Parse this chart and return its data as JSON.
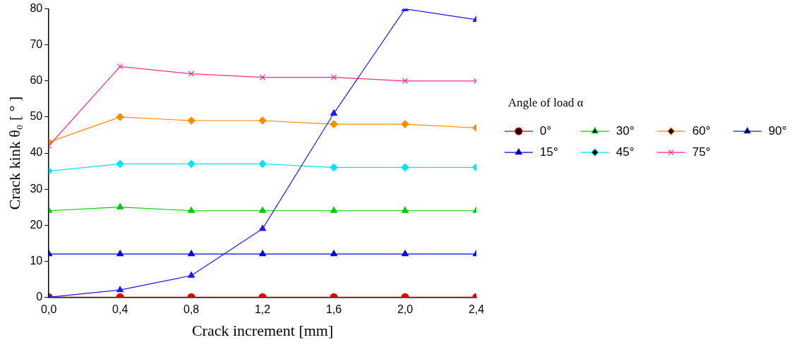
{
  "chart_data": {
    "type": "line",
    "xlabel": "Crack increment [mm]",
    "ylabel": "Crack kink θ₀ [ ° ]",
    "legend_title": "Angle of load α",
    "legend": "right",
    "grid": false,
    "x": [
      0,
      0.4,
      0.8,
      1.2,
      1.6,
      2.0,
      2.4
    ],
    "xlim": [
      0,
      2.4
    ],
    "xticks": [
      {
        "value": 0,
        "label": "0,0"
      },
      {
        "value": 0.4,
        "label": "0,4"
      },
      {
        "value": 0.8,
        "label": "0,8"
      },
      {
        "value": 1.2,
        "label": "1,2"
      },
      {
        "value": 1.6,
        "label": "1,6"
      },
      {
        "value": 2.0,
        "label": "2,0"
      },
      {
        "value": 2.4,
        "label": "2,4"
      }
    ],
    "ylim": [
      0,
      80
    ],
    "yticks": [
      0,
      10,
      20,
      30,
      40,
      50,
      60,
      70,
      80
    ],
    "series": [
      {
        "name": "0°",
        "color": "#e00000",
        "marker": "circle",
        "values": [
          0,
          0,
          0,
          0,
          0,
          0,
          0
        ]
      },
      {
        "name": "15°",
        "color": "#0000ff",
        "marker": "triangle",
        "values": [
          12,
          12,
          12,
          12,
          12,
          12,
          12
        ]
      },
      {
        "name": "30°",
        "color": "#00cc00",
        "marker": "triangle",
        "values": [
          24,
          25,
          24,
          24,
          24,
          24,
          24
        ]
      },
      {
        "name": "45°",
        "color": "#00e5ff",
        "marker": "diamond",
        "values": [
          35,
          37,
          37,
          37,
          36,
          36,
          36
        ]
      },
      {
        "name": "60°",
        "color": "#ff8c00",
        "marker": "diamond",
        "values": [
          43,
          50,
          49,
          49,
          48,
          48,
          47
        ]
      },
      {
        "name": "75°",
        "color": "#ff2a8a",
        "marker": "cross",
        "values": [
          42,
          64,
          62,
          61,
          61,
          60,
          60
        ]
      },
      {
        "name": "90°",
        "color": "#1a1aff",
        "marker": "triangle",
        "values": [
          0,
          2,
          6,
          19,
          51,
          80,
          77
        ]
      }
    ]
  }
}
